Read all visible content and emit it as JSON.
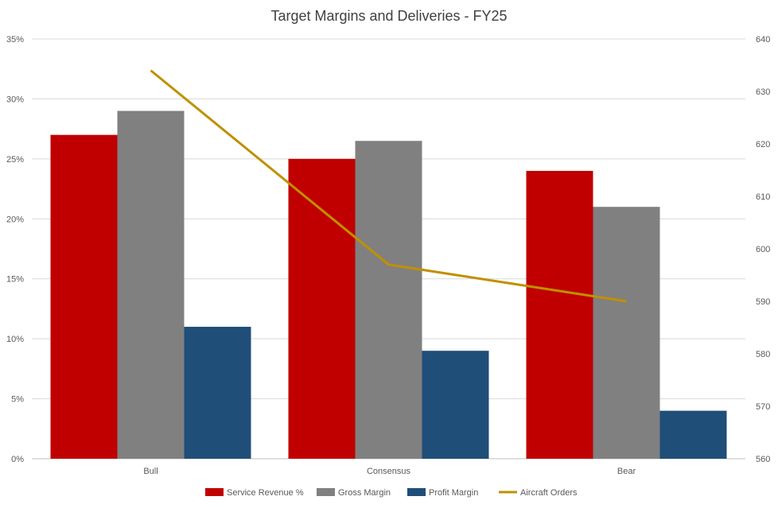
{
  "chart_data": {
    "type": "bar",
    "title": "Target Margins and Deliveries - FY25",
    "categories": [
      "Bull",
      "Consensus",
      "Bear"
    ],
    "series": [
      {
        "name": "Service Revenue %",
        "type": "bar",
        "axis": "left",
        "color": "#c00000",
        "values": [
          27,
          25,
          24
        ]
      },
      {
        "name": "Gross Margin",
        "type": "bar",
        "axis": "left",
        "color": "#808080",
        "values": [
          29,
          26.5,
          21
        ]
      },
      {
        "name": "Profit Margin",
        "type": "bar",
        "axis": "left",
        "color": "#1f4e79",
        "values": [
          11,
          9,
          4
        ]
      },
      {
        "name": "Aircraft Orders",
        "type": "line",
        "axis": "right",
        "color": "#c09000",
        "values": [
          634,
          597,
          590
        ]
      }
    ],
    "y_left": {
      "min": 0,
      "max": 35,
      "step": 5,
      "tick_labels": [
        "0%",
        "5%",
        "10%",
        "15%",
        "20%",
        "25%",
        "30%",
        "35%"
      ]
    },
    "y_right": {
      "min": 560,
      "max": 640,
      "step": 10,
      "tick_labels": [
        "560",
        "570",
        "580",
        "590",
        "600",
        "610",
        "620",
        "630",
        "640"
      ]
    },
    "grid": true,
    "legend_position": "bottom"
  }
}
